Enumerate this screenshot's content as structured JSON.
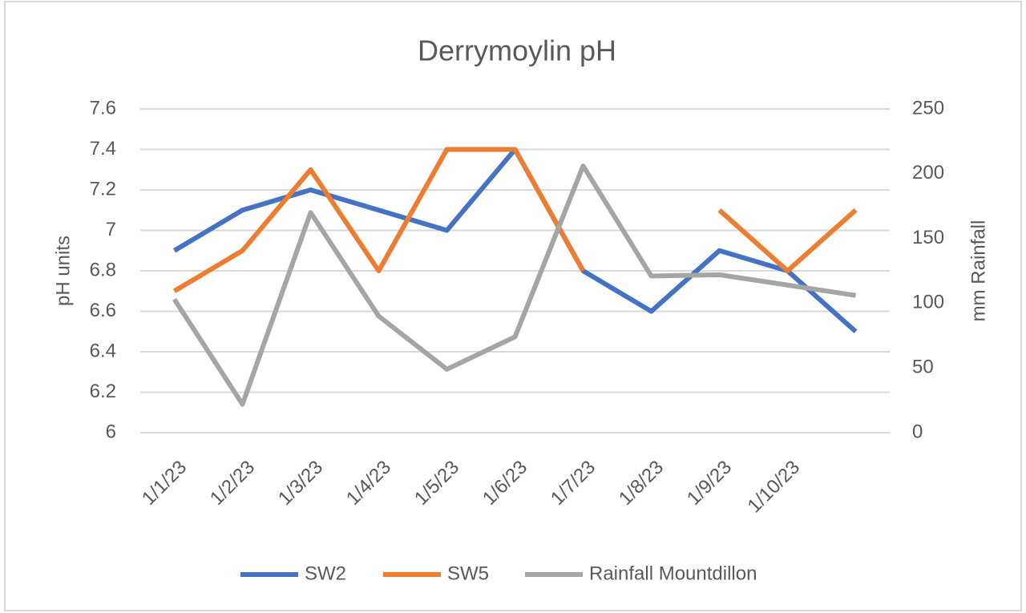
{
  "chart_data": {
    "type": "line",
    "title": "Derrymoylin pH",
    "categories": [
      "1/1/23",
      "1/2/23",
      "1/3/23",
      "1/4/23",
      "1/5/23",
      "1/6/23",
      "1/7/23",
      "1/8/23",
      "1/9/23",
      "1/10/23",
      null
    ],
    "y_label": "pH units",
    "y2_label": "mm Rainfall",
    "series": [
      {
        "name": "SW2",
        "color": "#4472c4",
        "values": [
          6.9,
          7.1,
          7.2,
          7.1,
          7.0,
          7.4,
          6.8,
          6.6,
          6.9,
          6.8,
          6.5
        ]
      },
      {
        "name": "SW5",
        "color": "#ed7d31",
        "values": [
          6.7,
          6.9,
          7.3,
          6.8,
          7.4,
          7.4,
          6.8,
          null,
          7.1,
          6.8,
          7.1
        ]
      },
      {
        "name": "Rainfall Mountdillon",
        "color": "#a5a5a5",
        "axis": "y2",
        "values": [
          103,
          22,
          170,
          90,
          49,
          74,
          206,
          121,
          122,
          114,
          106
        ]
      }
    ],
    "ylim": [
      6,
      7.6
    ],
    "yticks": [
      6,
      6.2,
      6.4,
      6.6,
      6.8,
      7,
      7.2,
      7.4,
      7.6
    ],
    "y2lim": [
      0,
      250
    ],
    "y2ticks": [
      0,
      50,
      100,
      150,
      200,
      250
    ],
    "grid": true,
    "legend": "bottom"
  }
}
